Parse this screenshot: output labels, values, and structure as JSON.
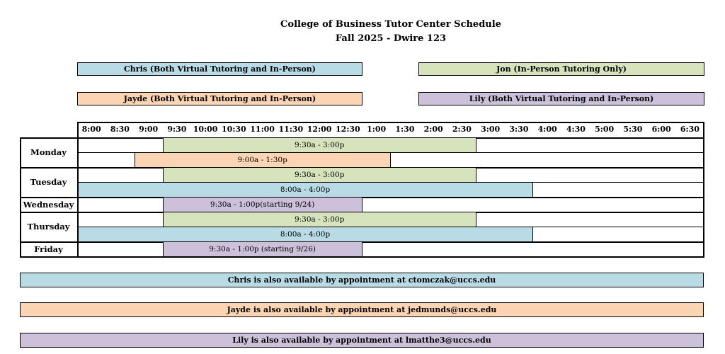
{
  "header": {
    "title": "College of Business Tutor Center Schedule",
    "subtitle": "Fall 2025 - Dwire 123"
  },
  "legend": [
    {
      "label": "Chris (Both Virtual Tutoring and In-Person)",
      "color": "#b8dbe6"
    },
    {
      "label": "Jon (In-Person Tutoring Only)",
      "color": "#d6e3bc"
    },
    {
      "label": "Jayde (Both Virtual Tutoring and In-Person)",
      "color": "#fbd4b4"
    },
    {
      "label": "Lily (Both Virtual Tutoring and In-Person)",
      "color": "#ccc0da"
    }
  ],
  "schedule": {
    "time_slots": [
      "8:00",
      "8:30",
      "9:00",
      "9:30",
      "10:00",
      "10:30",
      "11:00",
      "11:30",
      "12:00",
      "12:30",
      "1:00",
      "1:30",
      "2:00",
      "2:30",
      "3:00",
      "3:30",
      "4:00",
      "4:30",
      "5:00",
      "5:30",
      "6:00",
      "6:30"
    ],
    "days": [
      {
        "name": "Monday",
        "rows": [
          {
            "tutor": "jon",
            "label": "9:30a - 3:00p",
            "start_slot": 3,
            "end_slot": 14
          },
          {
            "tutor": "jayde",
            "label": "9:00a - 1:30p",
            "start_slot": 2,
            "end_slot": 11
          }
        ]
      },
      {
        "name": "Tuesday",
        "rows": [
          {
            "tutor": "jon",
            "label": "9:30a - 3:00p",
            "start_slot": 3,
            "end_slot": 14
          },
          {
            "tutor": "chris",
            "label": "8:00a - 4:00p",
            "start_slot": 0,
            "end_slot": 16
          }
        ]
      },
      {
        "name": "Wednesday",
        "rows": [
          {
            "tutor": "lily",
            "label": "9:30a - 1:00p(starting 9/24)",
            "start_slot": 3,
            "end_slot": 10
          }
        ]
      },
      {
        "name": "Thursday",
        "rows": [
          {
            "tutor": "jon",
            "label": "9:30a - 3:00p",
            "start_slot": 3,
            "end_slot": 14
          },
          {
            "tutor": "chris",
            "label": "8:00a - 4:00p",
            "start_slot": 0,
            "end_slot": 16
          }
        ]
      },
      {
        "name": "Friday",
        "rows": [
          {
            "tutor": "lily",
            "label": "9:30a - 1:00p (starting 9/26)",
            "start_slot": 3,
            "end_slot": 10
          }
        ]
      }
    ]
  },
  "appointments": [
    {
      "text": "Chris is also available by appointment at ctomczak@uccs.edu",
      "color": "#b8dbe6"
    },
    {
      "text": "Jayde is also available by appointment at jedmunds@uccs.edu",
      "color": "#fbd4b4"
    },
    {
      "text": "Lily is also available by appointment at lmatthe3@uccs.edu",
      "color": "#ccc0da"
    }
  ]
}
